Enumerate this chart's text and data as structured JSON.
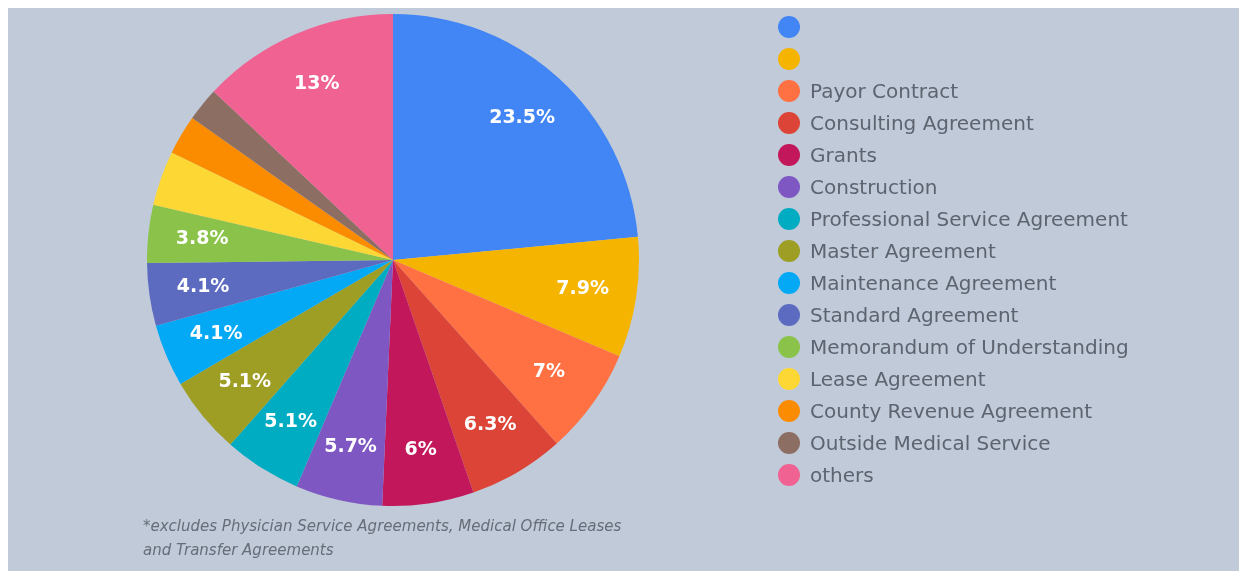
{
  "chart_data": {
    "type": "pie",
    "categories": [
      null,
      null,
      "Payor Contract",
      "Consulting Agreement",
      "Grants",
      "Construction",
      "Professional Service Agreement",
      "Master Agreement",
      "Maintenance Agreement",
      "Standard Agreement",
      "Memorandum of Understanding",
      "Lease Agreement",
      "County Revenue Agreement",
      "Outside Medical Service",
      "others"
    ],
    "values": [
      23.5,
      7.9,
      7,
      6.3,
      6,
      5.7,
      5.1,
      5.1,
      4.1,
      4.1,
      3.8,
      3.6,
      2.6,
      2.2,
      13
    ],
    "value_labels": [
      "23.5%",
      "7.9%",
      "7%",
      "6.3%",
      "6%",
      "5.7%",
      "5.1%",
      "5.1%",
      "4.1%",
      "4.1%",
      "3.8%",
      null,
      null,
      null,
      "13%"
    ],
    "colors": [
      "#4285f4",
      "#f4b400",
      "#ff7043",
      "#db4437",
      "#c2185b",
      "#7e57c2",
      "#00acc1",
      "#9e9d24",
      "#03a9f4",
      "#5c6bc0",
      "#8bc34a",
      "#fdd835",
      "#fb8c00",
      "#8d6e63",
      "#f06292"
    ],
    "legend": "right",
    "annotations": [
      "*excludes Physician Service Agreements, Medical Office Leases and Transfer Agreements"
    ]
  }
}
